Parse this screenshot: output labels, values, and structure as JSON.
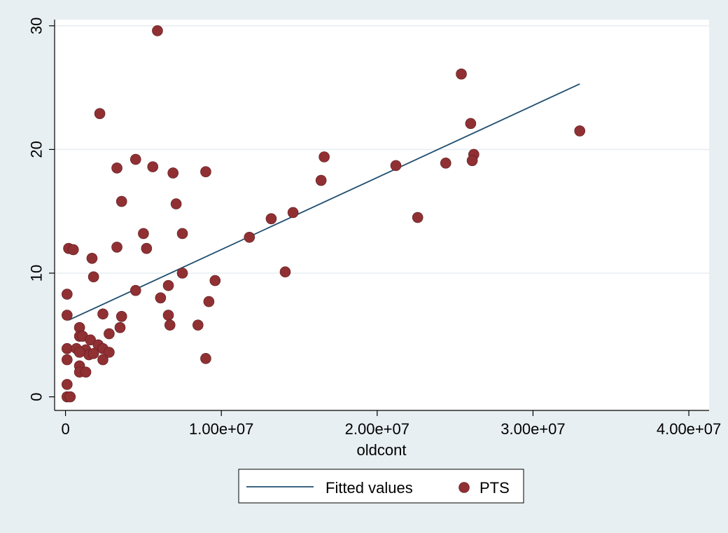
{
  "chart_data": {
    "type": "scatter",
    "xlabel": "oldcont",
    "ylabel": "",
    "xlim": [
      -700000,
      41300000
    ],
    "ylim": [
      -1.1,
      30.5
    ],
    "xticks": [
      0,
      10000000,
      20000000,
      30000000,
      40000000
    ],
    "xtick_labels": [
      "0",
      "1.00e+07",
      "2.00e+07",
      "3.00e+07",
      "4.00e+07"
    ],
    "yticks": [
      0,
      10,
      20,
      30
    ],
    "ytick_labels": [
      "0",
      "10",
      "20",
      "30"
    ],
    "grid": "horizontal",
    "legend_position": "bottom",
    "series": [
      {
        "name": "Fitted values",
        "kind": "line",
        "color": "#1f4e70",
        "points": [
          [
            200000,
            6.2
          ],
          [
            33000000,
            25.3
          ]
        ]
      },
      {
        "name": "PTS",
        "kind": "scatter",
        "color": "#903033",
        "points": [
          [
            5900000,
            29.6
          ],
          [
            2200000,
            22.9
          ],
          [
            25400000,
            26.1
          ],
          [
            26000000,
            22.1
          ],
          [
            33000000,
            21.5
          ],
          [
            26200000,
            19.6
          ],
          [
            26100000,
            19.1
          ],
          [
            24400000,
            18.9
          ],
          [
            21200000,
            18.7
          ],
          [
            16600000,
            19.4
          ],
          [
            16400000,
            17.5
          ],
          [
            4500000,
            19.2
          ],
          [
            3300000,
            18.5
          ],
          [
            5600000,
            18.6
          ],
          [
            6900000,
            18.1
          ],
          [
            9000000,
            18.2
          ],
          [
            3600000,
            15.8
          ],
          [
            7100000,
            15.6
          ],
          [
            14600000,
            14.9
          ],
          [
            13200000,
            14.4
          ],
          [
            22600000,
            14.5
          ],
          [
            5000000,
            13.2
          ],
          [
            7500000,
            13.2
          ],
          [
            11800000,
            12.9
          ],
          [
            200000,
            12.0
          ],
          [
            500000,
            11.9
          ],
          [
            3300000,
            12.1
          ],
          [
            5200000,
            12.0
          ],
          [
            1700000,
            11.2
          ],
          [
            1800000,
            9.7
          ],
          [
            7500000,
            10.0
          ],
          [
            14100000,
            10.1
          ],
          [
            9600000,
            9.4
          ],
          [
            6600000,
            9.0
          ],
          [
            4500000,
            8.6
          ],
          [
            100000,
            8.3
          ],
          [
            6100000,
            8.0
          ],
          [
            9200000,
            7.7
          ],
          [
            100000,
            6.6
          ],
          [
            2400000,
            6.7
          ],
          [
            3600000,
            6.5
          ],
          [
            6600000,
            6.6
          ],
          [
            6700000,
            5.8
          ],
          [
            8500000,
            5.8
          ],
          [
            3500000,
            5.6
          ],
          [
            900000,
            5.6
          ],
          [
            900000,
            4.9
          ],
          [
            1100000,
            4.9
          ],
          [
            2800000,
            5.1
          ],
          [
            1600000,
            4.6
          ],
          [
            2100000,
            4.2
          ],
          [
            100000,
            3.9
          ],
          [
            700000,
            3.9
          ],
          [
            1300000,
            3.8
          ],
          [
            1500000,
            3.4
          ],
          [
            1800000,
            3.5
          ],
          [
            2400000,
            3.9
          ],
          [
            900000,
            3.6
          ],
          [
            2800000,
            3.6
          ],
          [
            100000,
            3.0
          ],
          [
            2400000,
            3.0
          ],
          [
            9000000,
            3.1
          ],
          [
            900000,
            2.5
          ],
          [
            900000,
            2.0
          ],
          [
            1300000,
            2.0
          ],
          [
            100000,
            1.0
          ],
          [
            100000,
            0.0
          ],
          [
            300000,
            0.0
          ]
        ]
      }
    ]
  }
}
